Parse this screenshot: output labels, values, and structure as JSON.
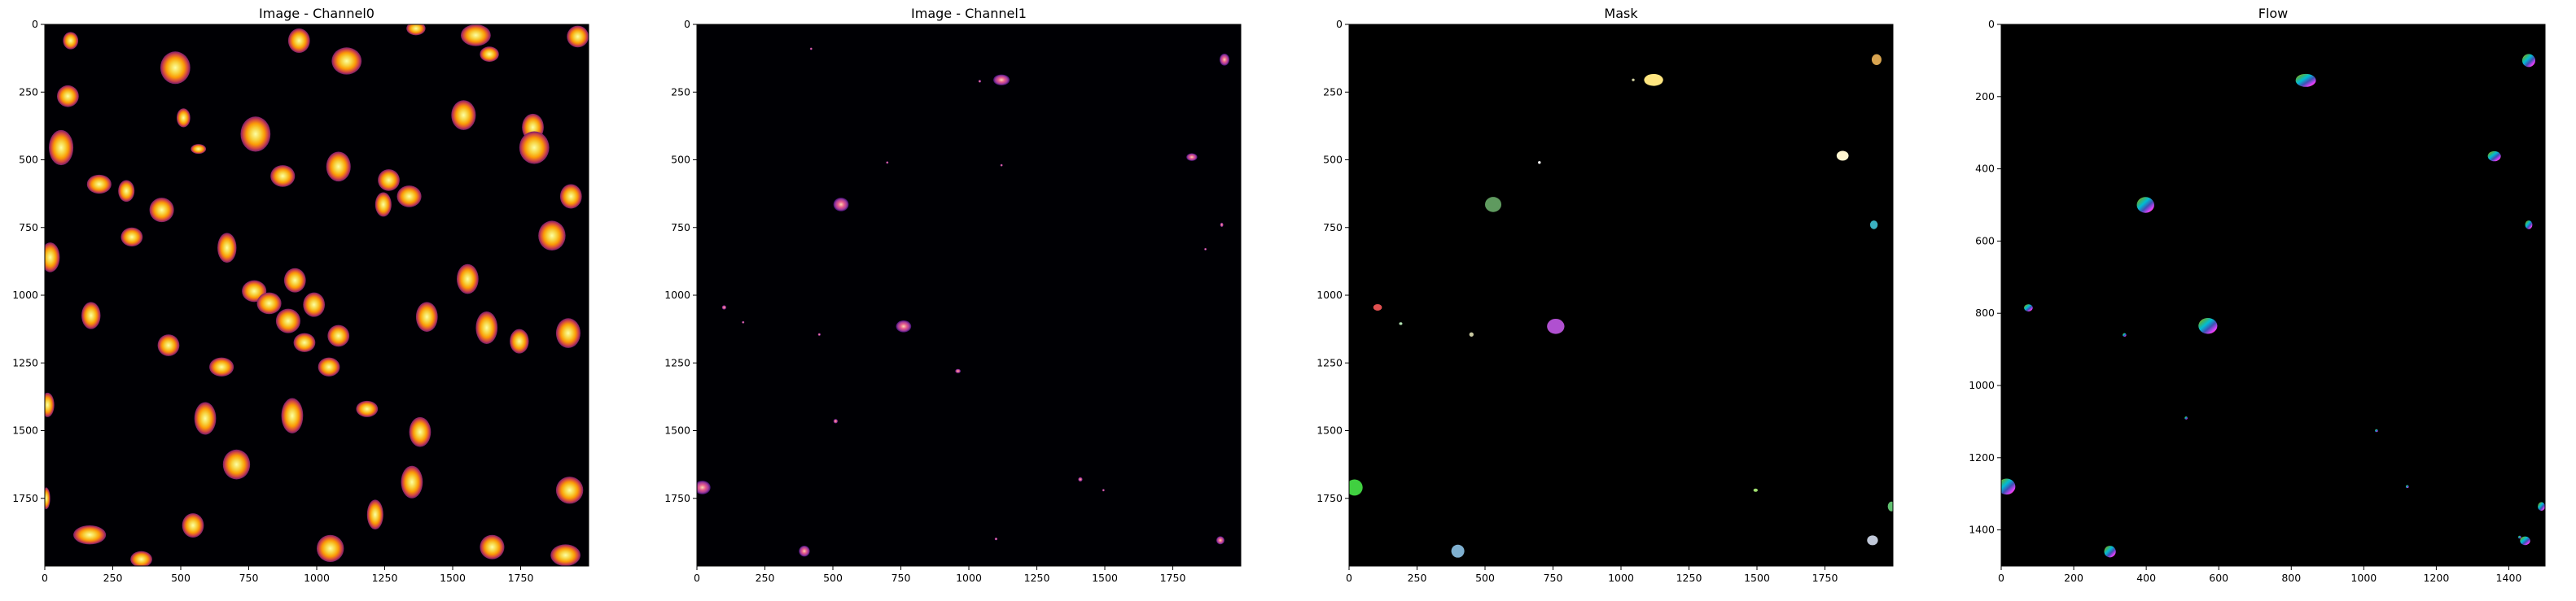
{
  "chart_data": [
    {
      "type": "heatmap",
      "title": "Image - Channel0",
      "colormap": "inferno",
      "xlim": [
        0,
        1999
      ],
      "ylim": [
        1999,
        0
      ],
      "xticks": [
        0,
        250,
        500,
        750,
        1000,
        1250,
        1500,
        1750
      ],
      "yticks": [
        0,
        250,
        500,
        750,
        1000,
        1250,
        1500,
        1750
      ],
      "objects": [
        {
          "x": 95,
          "y": 60,
          "rx": 28,
          "ry": 32
        },
        {
          "x": 480,
          "y": 160,
          "rx": 55,
          "ry": 60
        },
        {
          "x": 935,
          "y": 60,
          "rx": 40,
          "ry": 45
        },
        {
          "x": 1110,
          "y": 135,
          "rx": 55,
          "ry": 50
        },
        {
          "x": 1365,
          "y": 15,
          "rx": 35,
          "ry": 25
        },
        {
          "x": 1585,
          "y": 40,
          "rx": 55,
          "ry": 40
        },
        {
          "x": 1635,
          "y": 110,
          "rx": 35,
          "ry": 28
        },
        {
          "x": 1960,
          "y": 45,
          "rx": 40,
          "ry": 40
        },
        {
          "x": 85,
          "y": 265,
          "rx": 40,
          "ry": 40
        },
        {
          "x": 510,
          "y": 345,
          "rx": 25,
          "ry": 35
        },
        {
          "x": 60,
          "y": 455,
          "rx": 45,
          "ry": 65
        },
        {
          "x": 565,
          "y": 460,
          "rx": 28,
          "ry": 18
        },
        {
          "x": 775,
          "y": 405,
          "rx": 55,
          "ry": 65
        },
        {
          "x": 1540,
          "y": 335,
          "rx": 45,
          "ry": 55
        },
        {
          "x": 1795,
          "y": 380,
          "rx": 40,
          "ry": 50
        },
        {
          "x": 1800,
          "y": 455,
          "rx": 55,
          "ry": 60
        },
        {
          "x": 875,
          "y": 560,
          "rx": 45,
          "ry": 40
        },
        {
          "x": 1080,
          "y": 525,
          "rx": 45,
          "ry": 55
        },
        {
          "x": 1265,
          "y": 575,
          "rx": 40,
          "ry": 40
        },
        {
          "x": 1935,
          "y": 635,
          "rx": 40,
          "ry": 45
        },
        {
          "x": 200,
          "y": 590,
          "rx": 45,
          "ry": 35
        },
        {
          "x": 300,
          "y": 615,
          "rx": 30,
          "ry": 40
        },
        {
          "x": 430,
          "y": 685,
          "rx": 45,
          "ry": 45
        },
        {
          "x": 1340,
          "y": 635,
          "rx": 45,
          "ry": 40
        },
        {
          "x": 320,
          "y": 785,
          "rx": 40,
          "ry": 35
        },
        {
          "x": 670,
          "y": 825,
          "rx": 35,
          "ry": 55
        },
        {
          "x": 1245,
          "y": 665,
          "rx": 30,
          "ry": 45
        },
        {
          "x": 1865,
          "y": 780,
          "rx": 50,
          "ry": 55
        },
        {
          "x": 20,
          "y": 860,
          "rx": 35,
          "ry": 55
        },
        {
          "x": 1555,
          "y": 940,
          "rx": 40,
          "ry": 55
        },
        {
          "x": 770,
          "y": 985,
          "rx": 45,
          "ry": 40
        },
        {
          "x": 920,
          "y": 945,
          "rx": 40,
          "ry": 45
        },
        {
          "x": 825,
          "y": 1030,
          "rx": 45,
          "ry": 40
        },
        {
          "x": 990,
          "y": 1035,
          "rx": 40,
          "ry": 45
        },
        {
          "x": 170,
          "y": 1075,
          "rx": 35,
          "ry": 50
        },
        {
          "x": 895,
          "y": 1095,
          "rx": 45,
          "ry": 45
        },
        {
          "x": 1405,
          "y": 1080,
          "rx": 40,
          "ry": 55
        },
        {
          "x": 1625,
          "y": 1120,
          "rx": 40,
          "ry": 60
        },
        {
          "x": 1080,
          "y": 1150,
          "rx": 40,
          "ry": 40
        },
        {
          "x": 1925,
          "y": 1140,
          "rx": 45,
          "ry": 55
        },
        {
          "x": 955,
          "y": 1175,
          "rx": 40,
          "ry": 35
        },
        {
          "x": 1745,
          "y": 1170,
          "rx": 35,
          "ry": 45
        },
        {
          "x": 455,
          "y": 1185,
          "rx": 40,
          "ry": 40
        },
        {
          "x": 650,
          "y": 1265,
          "rx": 45,
          "ry": 35
        },
        {
          "x": 1045,
          "y": 1265,
          "rx": 40,
          "ry": 35
        },
        {
          "x": 1185,
          "y": 1420,
          "rx": 40,
          "ry": 30
        },
        {
          "x": 10,
          "y": 1405,
          "rx": 25,
          "ry": 45
        },
        {
          "x": 590,
          "y": 1455,
          "rx": 40,
          "ry": 60
        },
        {
          "x": 910,
          "y": 1445,
          "rx": 40,
          "ry": 65
        },
        {
          "x": 1380,
          "y": 1505,
          "rx": 40,
          "ry": 55
        },
        {
          "x": 705,
          "y": 1625,
          "rx": 50,
          "ry": 55
        },
        {
          "x": 1350,
          "y": 1690,
          "rx": 40,
          "ry": 60
        },
        {
          "x": 1930,
          "y": 1720,
          "rx": 50,
          "ry": 50
        },
        {
          "x": 1215,
          "y": 1810,
          "rx": 30,
          "ry": 55
        },
        {
          "x": 165,
          "y": 1885,
          "rx": 60,
          "ry": 35
        },
        {
          "x": 545,
          "y": 1850,
          "rx": 40,
          "ry": 45
        },
        {
          "x": 1050,
          "y": 1935,
          "rx": 50,
          "ry": 50
        },
        {
          "x": 1645,
          "y": 1930,
          "rx": 45,
          "ry": 45
        },
        {
          "x": 1915,
          "y": 1960,
          "rx": 55,
          "ry": 40
        },
        {
          "x": 355,
          "y": 1975,
          "rx": 40,
          "ry": 30
        },
        {
          "x": 5,
          "y": 1750,
          "rx": 15,
          "ry": 40
        }
      ]
    },
    {
      "type": "heatmap",
      "title": "Image - Channel1",
      "colormap": "magma",
      "xlim": [
        0,
        1999
      ],
      "ylim": [
        1999,
        0
      ],
      "xticks": [
        0,
        250,
        500,
        750,
        1000,
        1250,
        1500,
        1750
      ],
      "yticks": [
        0,
        250,
        500,
        750,
        1000,
        1250,
        1500,
        1750
      ],
      "objects": [
        {
          "x": 1120,
          "y": 205,
          "rx": 30,
          "ry": 20
        },
        {
          "x": 1940,
          "y": 130,
          "rx": 18,
          "ry": 22
        },
        {
          "x": 1820,
          "y": 490,
          "rx": 20,
          "ry": 14
        },
        {
          "x": 530,
          "y": 665,
          "rx": 28,
          "ry": 25
        },
        {
          "x": 760,
          "y": 1115,
          "rx": 28,
          "ry": 22
        },
        {
          "x": 20,
          "y": 1710,
          "rx": 30,
          "ry": 25
        },
        {
          "x": 395,
          "y": 1945,
          "rx": 20,
          "ry": 20
        },
        {
          "x": 1925,
          "y": 1905,
          "rx": 15,
          "ry": 15
        },
        {
          "x": 1100,
          "y": 1900,
          "rx": 5,
          "ry": 5
        },
        {
          "x": 960,
          "y": 1280,
          "rx": 10,
          "ry": 8
        },
        {
          "x": 100,
          "y": 1045,
          "rx": 8,
          "ry": 8
        },
        {
          "x": 450,
          "y": 1145,
          "rx": 5,
          "ry": 5
        },
        {
          "x": 170,
          "y": 1100,
          "rx": 4,
          "ry": 4
        },
        {
          "x": 510,
          "y": 1465,
          "rx": 8,
          "ry": 8
        },
        {
          "x": 1410,
          "y": 1680,
          "rx": 8,
          "ry": 8
        },
        {
          "x": 1495,
          "y": 1720,
          "rx": 4,
          "ry": 4
        },
        {
          "x": 1930,
          "y": 740,
          "rx": 6,
          "ry": 8
        },
        {
          "x": 1870,
          "y": 830,
          "rx": 4,
          "ry": 4
        },
        {
          "x": 700,
          "y": 510,
          "rx": 4,
          "ry": 4
        },
        {
          "x": 1040,
          "y": 210,
          "rx": 5,
          "ry": 5
        },
        {
          "x": 420,
          "y": 90,
          "rx": 4,
          "ry": 4
        },
        {
          "x": 1120,
          "y": 520,
          "rx": 4,
          "ry": 4
        }
      ]
    },
    {
      "type": "heatmap",
      "title": "Mask",
      "colormap": "label-mask",
      "xlim": [
        0,
        1999
      ],
      "ylim": [
        1999,
        0
      ],
      "xticks": [
        0,
        250,
        500,
        750,
        1000,
        1250,
        1500,
        1750
      ],
      "yticks": [
        0,
        250,
        500,
        750,
        1000,
        1250,
        1500,
        1750
      ],
      "objects": [
        {
          "x": 1120,
          "y": 205,
          "rx": 35,
          "ry": 22,
          "color": "#ffe680"
        },
        {
          "x": 1940,
          "y": 130,
          "rx": 18,
          "ry": 20,
          "color": "#d8a450"
        },
        {
          "x": 1815,
          "y": 485,
          "rx": 22,
          "ry": 18,
          "color": "#fff6d0"
        },
        {
          "x": 530,
          "y": 665,
          "rx": 30,
          "ry": 28,
          "color": "#5f9a5f"
        },
        {
          "x": 1930,
          "y": 740,
          "rx": 14,
          "ry": 16,
          "color": "#3ab0c0"
        },
        {
          "x": 105,
          "y": 1045,
          "rx": 16,
          "ry": 12,
          "color": "#e05050"
        },
        {
          "x": 760,
          "y": 1115,
          "rx": 32,
          "ry": 28,
          "color": "#b050d0"
        },
        {
          "x": 450,
          "y": 1145,
          "rx": 8,
          "ry": 8,
          "color": "#c8c8a0"
        },
        {
          "x": 20,
          "y": 1710,
          "rx": 30,
          "ry": 30,
          "color": "#40d040"
        },
        {
          "x": 1495,
          "y": 1720,
          "rx": 8,
          "ry": 6,
          "color": "#a0e070"
        },
        {
          "x": 1995,
          "y": 1780,
          "rx": 14,
          "ry": 18,
          "color": "#60c070"
        },
        {
          "x": 400,
          "y": 1945,
          "rx": 24,
          "ry": 24,
          "color": "#7fb0d0"
        },
        {
          "x": 1925,
          "y": 1905,
          "rx": 20,
          "ry": 18,
          "color": "#c0c8d8"
        },
        {
          "x": 700,
          "y": 510,
          "rx": 5,
          "ry": 5,
          "color": "#ffffff"
        },
        {
          "x": 1045,
          "y": 205,
          "rx": 5,
          "ry": 5,
          "color": "#d0d0a0"
        },
        {
          "x": 190,
          "y": 1105,
          "rx": 6,
          "ry": 5,
          "color": "#b0e0b0"
        }
      ]
    },
    {
      "type": "heatmap",
      "title": "Flow",
      "colormap": "hsv-flow",
      "xlim": [
        0,
        1499
      ],
      "ylim": [
        1499,
        0
      ],
      "xticks": [
        0,
        200,
        400,
        600,
        800,
        1000,
        1200,
        1400
      ],
      "yticks": [
        0,
        200,
        400,
        600,
        800,
        1000,
        1200,
        1400
      ],
      "objects": [
        {
          "x": 840,
          "y": 155,
          "rx": 28,
          "ry": 18
        },
        {
          "x": 1455,
          "y": 100,
          "rx": 18,
          "ry": 18
        },
        {
          "x": 1360,
          "y": 365,
          "rx": 18,
          "ry": 14
        },
        {
          "x": 398,
          "y": 500,
          "rx": 24,
          "ry": 22
        },
        {
          "x": 1455,
          "y": 555,
          "rx": 10,
          "ry": 12
        },
        {
          "x": 75,
          "y": 785,
          "rx": 12,
          "ry": 10
        },
        {
          "x": 570,
          "y": 835,
          "rx": 26,
          "ry": 22
        },
        {
          "x": 15,
          "y": 1280,
          "rx": 24,
          "ry": 22
        },
        {
          "x": 1490,
          "y": 1335,
          "rx": 10,
          "ry": 12
        },
        {
          "x": 300,
          "y": 1460,
          "rx": 16,
          "ry": 16
        },
        {
          "x": 1445,
          "y": 1430,
          "rx": 14,
          "ry": 12
        },
        {
          "x": 340,
          "y": 860,
          "rx": 5,
          "ry": 5
        },
        {
          "x": 1120,
          "y": 1280,
          "rx": 4,
          "ry": 4
        },
        {
          "x": 1035,
          "y": 1125,
          "rx": 4,
          "ry": 4
        },
        {
          "x": 1430,
          "y": 1420,
          "rx": 4,
          "ry": 4
        },
        {
          "x": 510,
          "y": 1090,
          "rx": 4,
          "ry": 4
        }
      ]
    }
  ]
}
